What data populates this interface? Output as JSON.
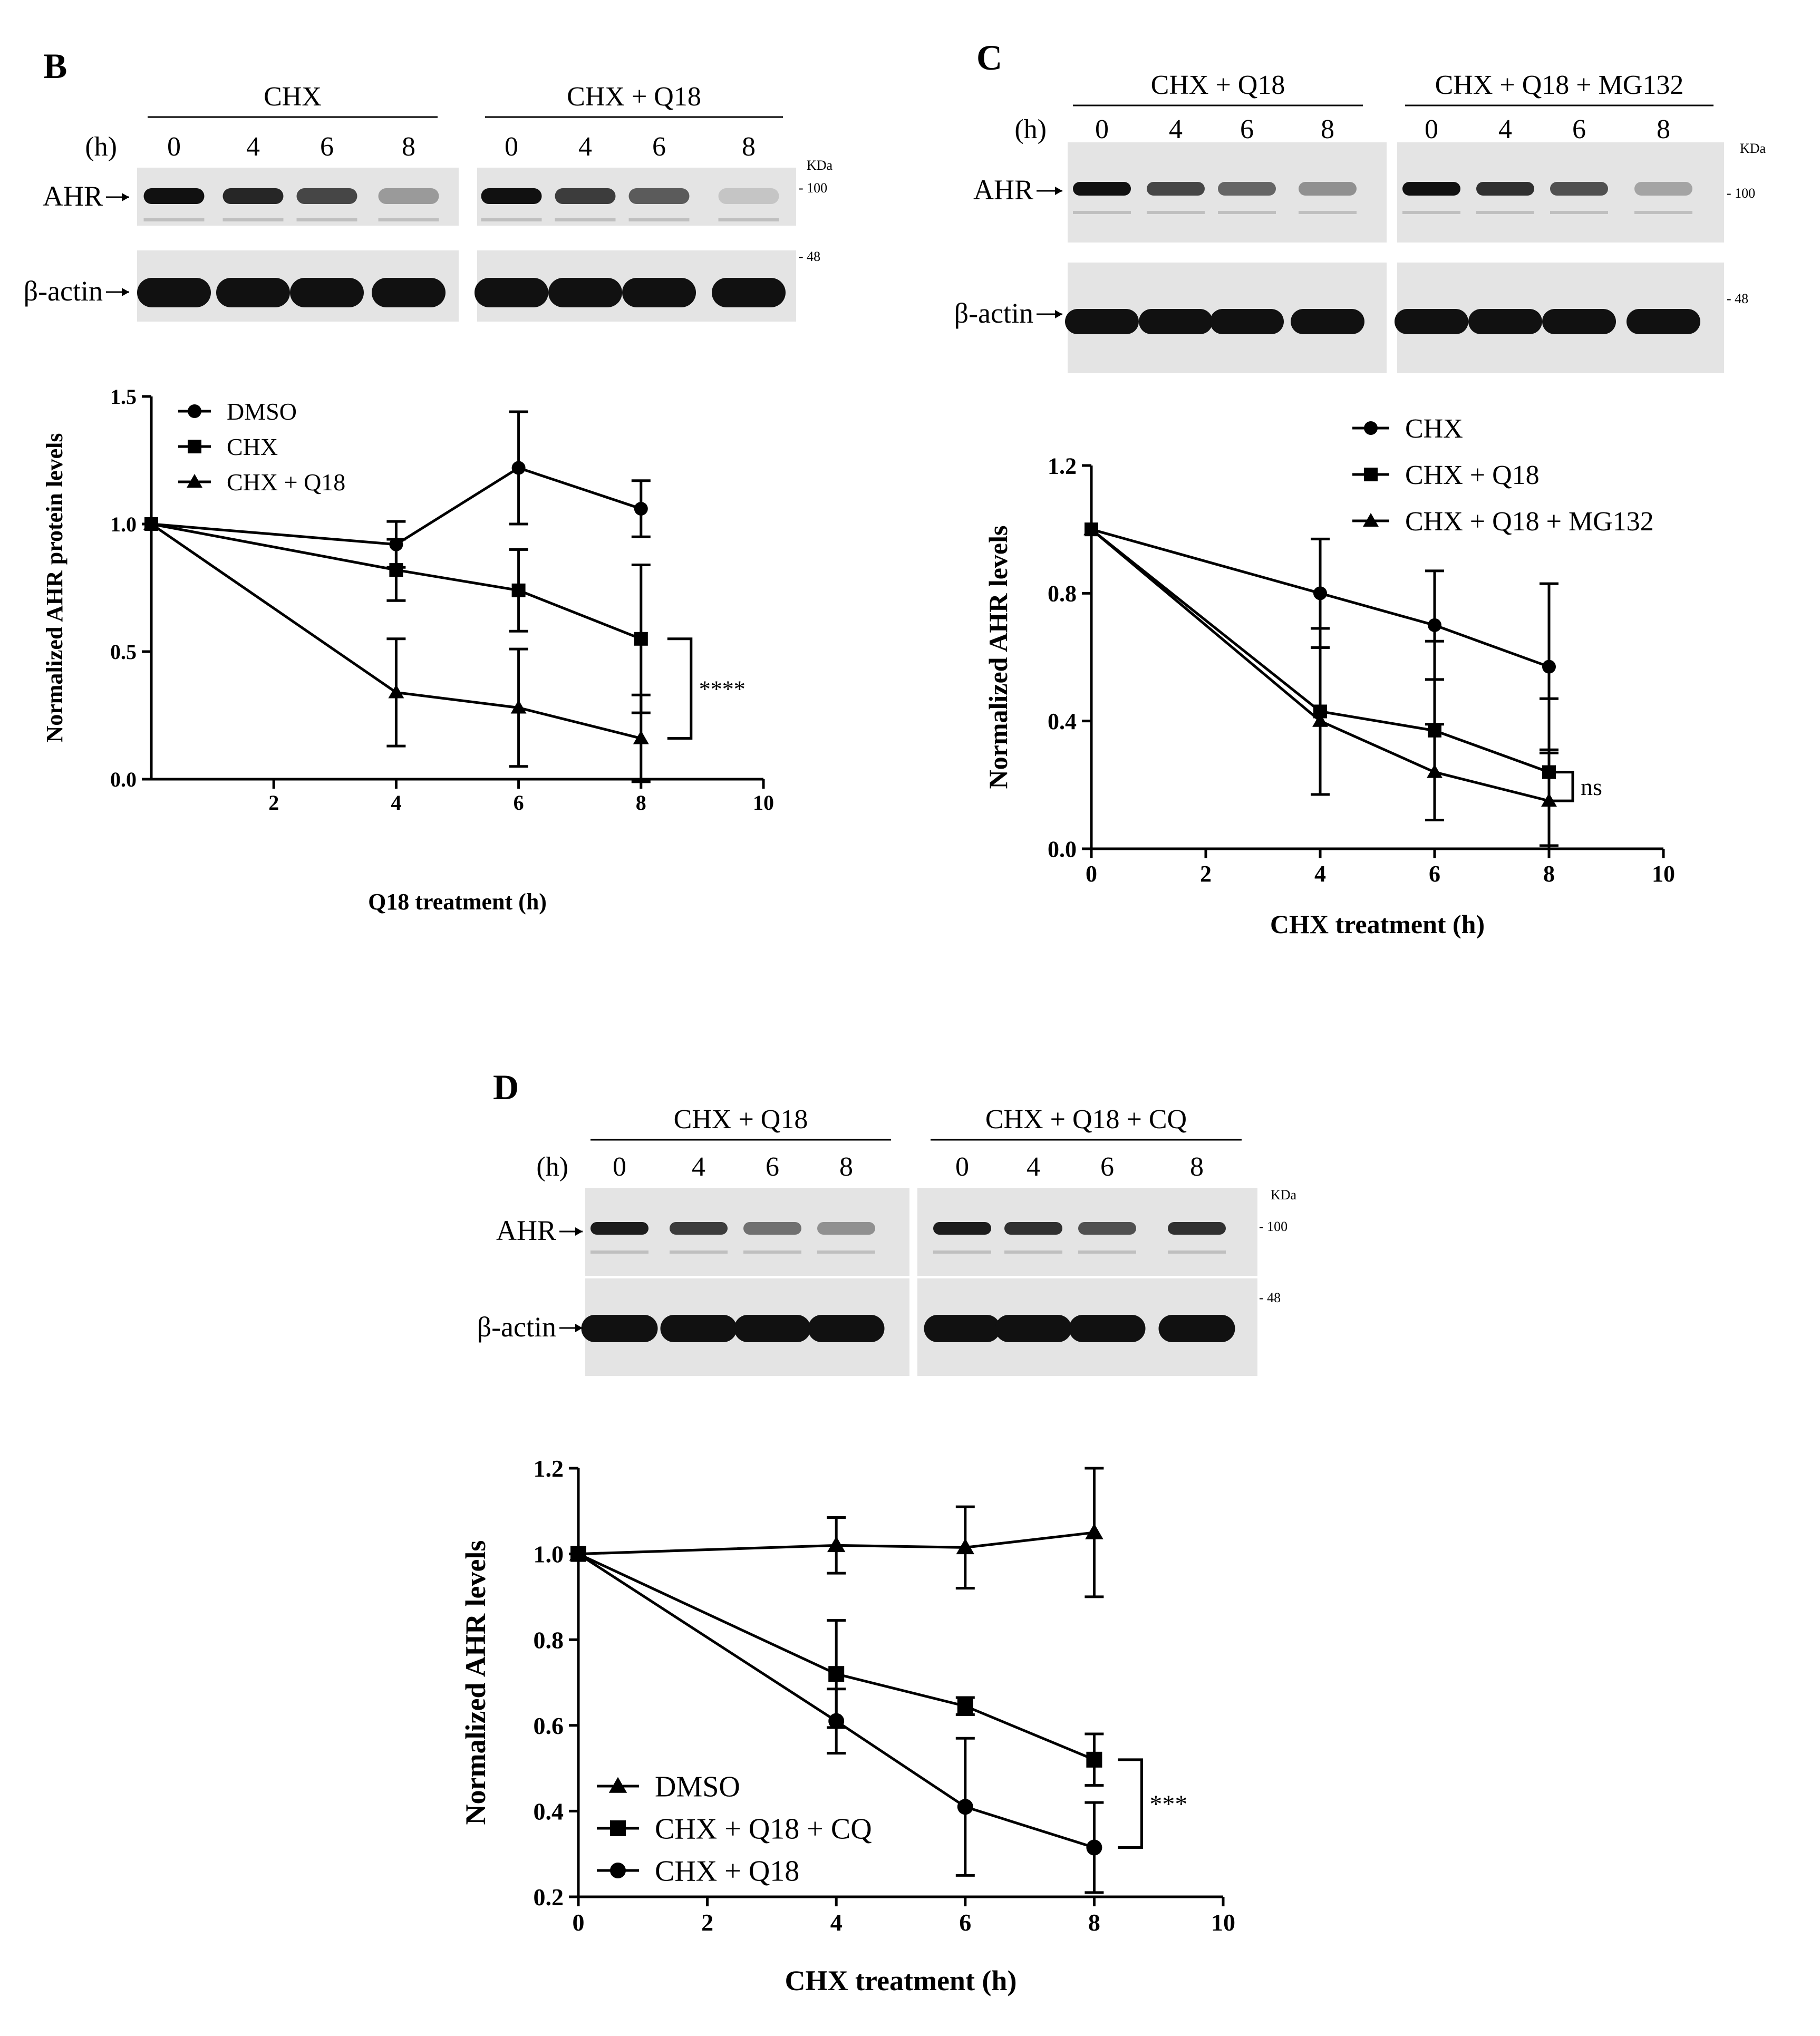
{
  "colors": {
    "ink": "#000000",
    "background": "#ffffff",
    "blot_band": "#111111",
    "blot_bg": "#e4e4e4"
  },
  "panels": {
    "B": {
      "letter": "B",
      "blot": {
        "hour_label": "(h)",
        "groups": [
          "CHX",
          "CHX + Q18"
        ],
        "lanes": [
          "0",
          "4",
          "6",
          "8"
        ],
        "kda_label": "KDa",
        "row_labels": [
          "AHR",
          "β-actin"
        ],
        "markers": [
          "100",
          "48"
        ]
      }
    },
    "C": {
      "letter": "C",
      "blot": {
        "hour_label": "(h)",
        "groups": [
          "CHX + Q18",
          "CHX + Q18 + MG132"
        ],
        "lanes": [
          "0",
          "4",
          "6",
          "8"
        ],
        "kda_label": "KDa",
        "row_labels": [
          "AHR",
          "β-actin"
        ],
        "markers": [
          "100",
          "48"
        ]
      }
    },
    "D": {
      "letter": "D",
      "blot": {
        "hour_label": "(h)",
        "groups": [
          "CHX + Q18",
          "CHX + Q18 + CQ"
        ],
        "lanes": [
          "0",
          "4",
          "6",
          "8"
        ],
        "kda_label": "KDa",
        "row_labels": [
          "AHR",
          "β-actin"
        ],
        "markers": [
          "100",
          "48"
        ]
      }
    }
  },
  "chart_data": [
    {
      "panel": "B",
      "type": "line",
      "title": "",
      "xlabel": "Q18 treatment (h)",
      "ylabel": "Normalized AHR protein levels",
      "xlim": [
        0,
        10
      ],
      "ylim": [
        0,
        1.5
      ],
      "xticks": [
        2,
        4,
        6,
        8,
        10
      ],
      "yticks": [
        0.0,
        0.5,
        1.0,
        1.5
      ],
      "x": [
        0,
        4,
        6,
        8
      ],
      "legend_position": "top-left",
      "series": [
        {
          "name": "DMSO",
          "marker": "circle",
          "values": [
            1.0,
            0.92,
            1.22,
            1.06
          ],
          "errors": [
            0,
            0.09,
            0.22,
            0.11
          ]
        },
        {
          "name": "CHX",
          "marker": "square",
          "values": [
            1.0,
            0.82,
            0.74,
            0.55
          ],
          "errors": [
            0,
            0.12,
            0.16,
            0.29
          ]
        },
        {
          "name": "CHX + Q18",
          "marker": "triangle",
          "values": [
            1.0,
            0.34,
            0.28,
            0.16
          ],
          "errors": [
            0,
            0.21,
            0.23,
            0.17
          ]
        }
      ],
      "significance": {
        "label": "****",
        "x": 8,
        "y_top": 0.55,
        "y_bottom": 0.16
      }
    },
    {
      "panel": "C",
      "type": "line",
      "title": "",
      "xlabel": "CHX treatment (h)",
      "ylabel": "Normalized AHR levels",
      "xlim": [
        0,
        10
      ],
      "ylim": [
        0,
        1.2
      ],
      "xticks": [
        0,
        2,
        4,
        6,
        8,
        10
      ],
      "yticks": [
        0.0,
        0.4,
        0.8,
        1.2
      ],
      "x": [
        0,
        4,
        6,
        8
      ],
      "legend_position": "top-right",
      "series": [
        {
          "name": "CHX",
          "marker": "circle",
          "values": [
            1.0,
            0.8,
            0.7,
            0.57
          ],
          "errors": [
            0,
            0.17,
            0.17,
            0.26
          ]
        },
        {
          "name": "CHX + Q18",
          "marker": "square",
          "values": [
            1.0,
            0.43,
            0.37,
            0.24
          ],
          "errors": [
            0,
            0.26,
            0.28,
            0.23
          ]
        },
        {
          "name": "CHX + Q18 + MG132",
          "marker": "triangle",
          "values": [
            1.0,
            0.4,
            0.24,
            0.15
          ],
          "errors": [
            0,
            0.23,
            0.15,
            0.15
          ]
        }
      ],
      "significance": {
        "label": "ns",
        "x": 8,
        "y_top": 0.24,
        "y_bottom": 0.15
      }
    },
    {
      "panel": "D",
      "type": "line",
      "title": "",
      "xlabel": "CHX treatment (h)",
      "ylabel": "Normalized AHR levels",
      "xlim": [
        0,
        10
      ],
      "ylim": [
        0.2,
        1.2
      ],
      "xticks": [
        0,
        2,
        4,
        6,
        8,
        10
      ],
      "yticks": [
        0.2,
        0.4,
        0.6,
        0.8,
        1.0,
        1.2
      ],
      "x": [
        0,
        4,
        6,
        8
      ],
      "legend_position": "bottom-left",
      "series": [
        {
          "name": "DMSO",
          "marker": "triangle",
          "values": [
            1.0,
            1.02,
            1.015,
            1.05
          ],
          "errors": [
            0,
            0.065,
            0.095,
            0.15
          ]
        },
        {
          "name": "CHX + Q18 + CQ",
          "marker": "square",
          "values": [
            1.0,
            0.72,
            0.645,
            0.52
          ],
          "errors": [
            0,
            0.125,
            0.02,
            0.06
          ]
        },
        {
          "name": "CHX + Q18",
          "marker": "circle",
          "values": [
            1.0,
            0.61,
            0.41,
            0.315
          ],
          "errors": [
            0,
            0.075,
            0.16,
            0.105
          ]
        }
      ],
      "significance": {
        "label": "***",
        "x": 8,
        "y_top": 0.52,
        "y_bottom": 0.315
      }
    }
  ]
}
